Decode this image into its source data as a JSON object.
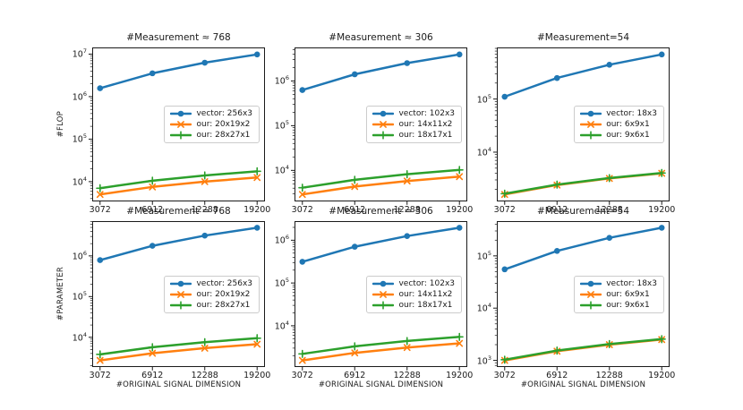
{
  "figure": {
    "background": "#ffffff",
    "text_color": "#1a1a1a"
  },
  "chart_data": {
    "type": "line",
    "yscale": "log",
    "grid": false,
    "legend_position": "center right",
    "xlabel": "#ORIGINAL SIGNAL DIMENSION",
    "x_categories": [
      "3072",
      "6912",
      "12288",
      "19200"
    ],
    "charts": [
      {
        "title": "#Measurement ≈ 768",
        "ylabel": "#FLOP",
        "ytick_exponents": [
          4,
          5,
          6,
          7
        ],
        "ylim": [
          3422,
          14360000
        ],
        "series": [
          {
            "name": "vector: 256x3",
            "color": "#1f77b4",
            "marker": "circle",
            "values": [
              1572864,
              3538944,
              6291456,
              9830400
            ]
          },
          {
            "name": "our: 20x19x2",
            "color": "#ff7f0e",
            "marker": "x",
            "values": [
              5000,
              7500,
              10000,
              12500
            ]
          },
          {
            "name": "our: 28x27x1",
            "color": "#2ca02c",
            "marker": "plus",
            "values": [
              7000,
              10500,
              14000,
              17500
            ]
          }
        ]
      },
      {
        "title": "#Measurement ≈ 306",
        "ylabel": "",
        "ytick_exponents": [
          4,
          5,
          6
        ],
        "ylim": [
          2023,
          5617000
        ],
        "series": [
          {
            "name": "vector: 102x3",
            "color": "#1f77b4",
            "marker": "circle",
            "values": [
              626688,
              1410048,
              2506752,
              3916800
            ]
          },
          {
            "name": "our: 14x11x2",
            "color": "#ff7f0e",
            "marker": "x",
            "values": [
              2900,
              4350,
              5800,
              7250
            ]
          },
          {
            "name": "our: 18x17x1",
            "color": "#2ca02c",
            "marker": "plus",
            "values": [
              4100,
              6150,
              8200,
              10250
            ]
          }
        ]
      },
      {
        "title": "#Measurement=54",
        "ylabel": "",
        "ytick_exponents": [
          4,
          5
        ],
        "ylim": [
          1181,
          936400
        ],
        "series": [
          {
            "name": "vector: 18x3",
            "color": "#1f77b4",
            "marker": "circle",
            "values": [
              110592,
              248832,
              442368,
              691200
            ]
          },
          {
            "name": "our: 6x9x1",
            "color": "#ff7f0e",
            "marker": "x",
            "values": [
              1600,
              2400,
              3200,
              4000
            ]
          },
          {
            "name": "our: 9x6x1",
            "color": "#2ca02c",
            "marker": "plus",
            "values": [
              1650,
              2450,
              3250,
              4050
            ]
          }
        ]
      },
      {
        "title": "#Measurement = 768",
        "ylabel": "#PARAMETER",
        "ytick_exponents": [
          4,
          5,
          6
        ],
        "ylim": [
          1856,
          7156000
        ],
        "series": [
          {
            "name": "vector: 256x3",
            "color": "#1f77b4",
            "marker": "circle",
            "values": [
              786432,
              1769472,
              3145728,
              4915200
            ]
          },
          {
            "name": "our: 20x19x2",
            "color": "#ff7f0e",
            "marker": "x",
            "values": [
              2700,
              4050,
              5400,
              6750
            ]
          },
          {
            "name": "our: 28x27x1",
            "color": "#2ca02c",
            "marker": "plus",
            "values": [
              3800,
              5700,
              7600,
              9500
            ]
          }
        ]
      },
      {
        "title": "#Measurement = 306",
        "ylabel": "",
        "ytick_exponents": [
          4,
          5,
          6
        ],
        "ylim": [
          1084,
          2799000
        ],
        "series": [
          {
            "name": "vector: 102x3",
            "color": "#1f77b4",
            "marker": "circle",
            "values": [
              313344,
              705024,
              1253376,
              1958400
            ]
          },
          {
            "name": "our: 14x11x2",
            "color": "#ff7f0e",
            "marker": "x",
            "values": [
              1550,
              2325,
              3100,
              3875
            ]
          },
          {
            "name": "our: 18x17x1",
            "color": "#2ca02c",
            "marker": "plus",
            "values": [
              2200,
              3300,
              4400,
              5500
            ]
          }
        ]
      },
      {
        "title": "#Measurement=54",
        "ylabel": "",
        "ytick_exponents": [
          3,
          4,
          5
        ],
        "ylim": [
          746,
          462900
        ],
        "series": [
          {
            "name": "vector: 18x3",
            "color": "#1f77b4",
            "marker": "circle",
            "values": [
              55296,
              124416,
              221184,
              345600
            ]
          },
          {
            "name": "our: 6x9x1",
            "color": "#ff7f0e",
            "marker": "x",
            "values": [
              1000,
              1500,
              2000,
              2500
            ]
          },
          {
            "name": "our: 9x6x1",
            "color": "#2ca02c",
            "marker": "plus",
            "values": [
              1030,
              1540,
              2050,
              2550
            ]
          }
        ]
      }
    ]
  }
}
